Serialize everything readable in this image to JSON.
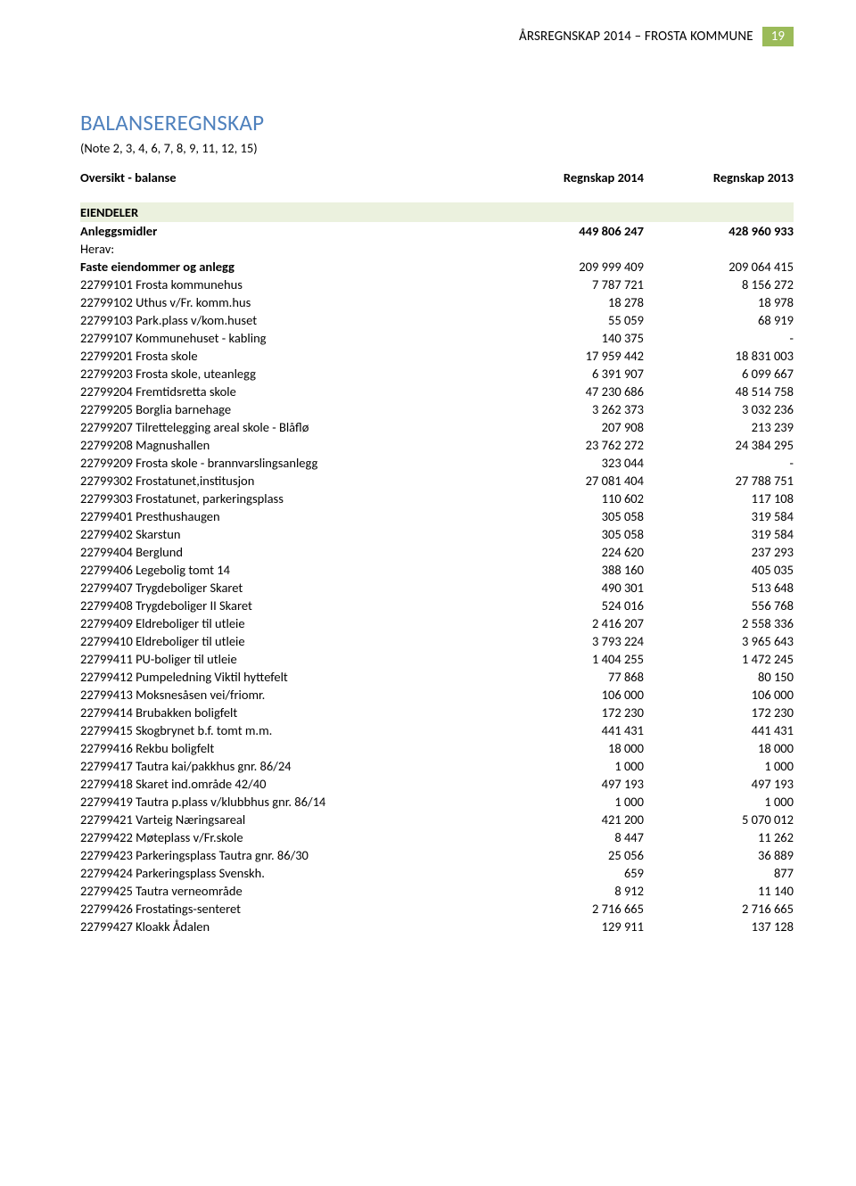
{
  "header": {
    "text": "ÅRSREGNSKAP 2014 – FROSTA KOMMUNE",
    "badge": "19"
  },
  "title": "BALANSEREGNSKAP",
  "note": "(Note 2, 3, 4, 6, 7, 8, 9, 11, 12, 15)",
  "columns": {
    "balance": "Oversikt - balanse",
    "y2014": "Regnskap 2014",
    "y2013": "Regnskap 2013"
  },
  "section": "EIENDELER",
  "anlegg": {
    "label": "Anleggsmidler",
    "y2014": "449 806 247",
    "y2013": "428 960 933"
  },
  "herav": "Herav:",
  "faste": {
    "label": "Faste eiendommer og anlegg",
    "y2014": "209 999 409",
    "y2013": "209 064 415"
  },
  "rows": [
    {
      "label": "22799101 Frosta kommunehus",
      "y2014": "7 787 721",
      "y2013": "8 156 272"
    },
    {
      "label": "22799102 Uthus v/Fr. komm.hus",
      "y2014": "18 278",
      "y2013": "18 978"
    },
    {
      "label": "22799103 Park.plass v/kom.huset",
      "y2014": "55 059",
      "y2013": "68 919"
    },
    {
      "label": "22799107 Kommunehuset - kabling",
      "y2014": "140 375",
      "y2013": "-"
    },
    {
      "label": "22799201 Frosta skole",
      "y2014": "17 959 442",
      "y2013": "18 831 003"
    },
    {
      "label": "22799203 Frosta skole, uteanlegg",
      "y2014": "6 391 907",
      "y2013": "6 099 667"
    },
    {
      "label": "22799204 Fremtidsretta skole",
      "y2014": "47 230 686",
      "y2013": "48 514 758"
    },
    {
      "label": "22799205 Borglia barnehage",
      "y2014": "3 262 373",
      "y2013": "3 032 236"
    },
    {
      "label": "22799207 Tilrettelegging areal skole - Blåflø",
      "y2014": "207 908",
      "y2013": "213 239"
    },
    {
      "label": "22799208 Magnushallen",
      "y2014": "23 762 272",
      "y2013": "24 384 295"
    },
    {
      "label": "22799209 Frosta skole - brannvarslingsanlegg",
      "y2014": "323 044",
      "y2013": "-"
    },
    {
      "label": "22799302 Frostatunet,institusjon",
      "y2014": "27 081 404",
      "y2013": "27 788 751"
    },
    {
      "label": "22799303 Frostatunet, parkeringsplass",
      "y2014": "110 602",
      "y2013": "117 108"
    },
    {
      "label": "22799401 Presthushaugen",
      "y2014": "305 058",
      "y2013": "319 584"
    },
    {
      "label": "22799402 Skarstun",
      "y2014": "305 058",
      "y2013": "319 584"
    },
    {
      "label": "22799404 Berglund",
      "y2014": "224 620",
      "y2013": "237 293"
    },
    {
      "label": "22799406 Legebolig tomt 14",
      "y2014": "388 160",
      "y2013": "405 035"
    },
    {
      "label": "22799407 Trygdeboliger Skaret",
      "y2014": "490 301",
      "y2013": "513 648"
    },
    {
      "label": "22799408 Trygdeboliger II Skaret",
      "y2014": "524 016",
      "y2013": "556 768"
    },
    {
      "label": "22799409 Eldreboliger til utleie",
      "y2014": "2 416 207",
      "y2013": "2 558 336"
    },
    {
      "label": "22799410 Eldreboliger til utleie",
      "y2014": "3 793 224",
      "y2013": "3 965 643"
    },
    {
      "label": "22799411 PU-boliger til utleie",
      "y2014": "1 404 255",
      "y2013": "1 472 245"
    },
    {
      "label": "22799412 Pumpeledning Viktil hyttefelt",
      "y2014": "77 868",
      "y2013": "80 150"
    },
    {
      "label": "22799413 Moksnesåsen vei/friomr.",
      "y2014": "106 000",
      "y2013": "106 000"
    },
    {
      "label": "22799414 Brubakken boligfelt",
      "y2014": "172 230",
      "y2013": "172 230"
    },
    {
      "label": "22799415 Skogbrynet b.f. tomt m.m.",
      "y2014": "441 431",
      "y2013": "441 431"
    },
    {
      "label": "22799416 Rekbu boligfelt",
      "y2014": "18 000",
      "y2013": "18 000"
    },
    {
      "label": "22799417 Tautra kai/pakkhus gnr.  86/24",
      "y2014": "1 000",
      "y2013": "1 000"
    },
    {
      "label": "22799418 Skaret ind.område 42/40",
      "y2014": "497 193",
      "y2013": "497 193"
    },
    {
      "label": "22799419 Tautra p.plass v/klubbhus gnr. 86/14",
      "y2014": "1 000",
      "y2013": "1 000"
    },
    {
      "label": "22799421 Varteig Næringsareal",
      "y2014": "421 200",
      "y2013": "5 070 012"
    },
    {
      "label": "22799422 Møteplass v/Fr.skole",
      "y2014": "8 447",
      "y2013": "11 262"
    },
    {
      "label": "22799423 Parkeringsplass Tautra gnr. 86/30",
      "y2014": "25 056",
      "y2013": "36 889"
    },
    {
      "label": "22799424 Parkeringsplass Svenskh.",
      "y2014": "659",
      "y2013": "877"
    },
    {
      "label": "22799425 Tautra verneområde",
      "y2014": "8 912",
      "y2013": "11 140"
    },
    {
      "label": "22799426 Frostatings-senteret",
      "y2014": "2 716 665",
      "y2013": "2 716 665"
    },
    {
      "label": "22799427 Kloakk Ådalen",
      "y2014": "129 911",
      "y2013": "137 128"
    }
  ]
}
